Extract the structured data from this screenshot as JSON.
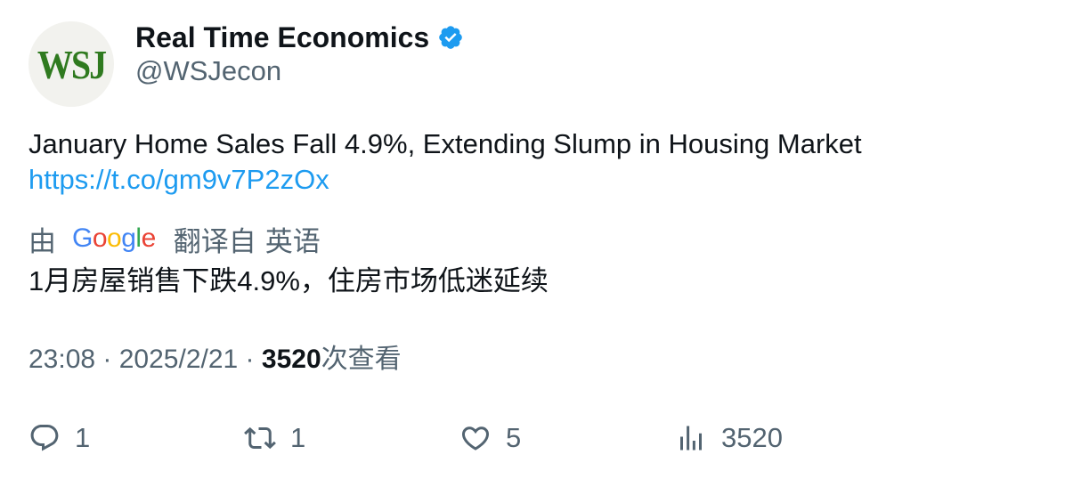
{
  "author": {
    "display_name": "Real Time Economics",
    "handle": "@WSJecon",
    "avatar_text": "WSJ",
    "verified_color": "#1d9bf0"
  },
  "tweet": {
    "text": "January Home Sales Fall 4.9%, Extending Slump in Housing Market",
    "link": "https://t.co/gm9v7P2zOx"
  },
  "translation": {
    "prefix": "由",
    "provider_letters": [
      {
        "char": "G",
        "color": "#4285f4"
      },
      {
        "char": "o",
        "color": "#ea4335"
      },
      {
        "char": "o",
        "color": "#fbbc05"
      },
      {
        "char": "g",
        "color": "#4285f4"
      },
      {
        "char": "l",
        "color": "#34a853"
      },
      {
        "char": "e",
        "color": "#ea4335"
      }
    ],
    "label": "翻译自",
    "source_language": "英语",
    "text": "1月房屋销售下跌4.9%，住房市场低迷延续"
  },
  "meta": {
    "time": "23:08",
    "separator": " · ",
    "date": "2025/2/21",
    "views_count": "3520",
    "views_label": "次查看"
  },
  "actions": {
    "reply": {
      "icon": "reply-icon",
      "count": "1"
    },
    "retweet": {
      "icon": "retweet-icon",
      "count": "1"
    },
    "like": {
      "icon": "heart-icon",
      "count": "5"
    },
    "views": {
      "icon": "views-chart-icon",
      "count": "3520"
    }
  },
  "colors": {
    "text_primary": "#0f1419",
    "text_secondary": "#536471",
    "link": "#1d9bf0",
    "avatar_bg": "#f2f2ee",
    "avatar_fg": "#2f7a1f"
  }
}
